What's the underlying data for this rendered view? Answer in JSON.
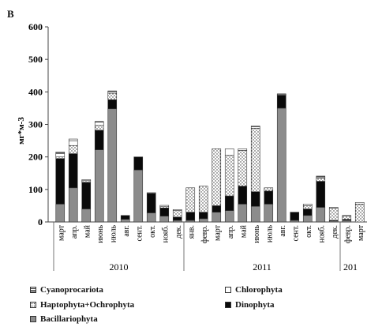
{
  "chart_data": {
    "type": "bar",
    "stacked": true,
    "panel_label": "В",
    "title": "",
    "xlabel": "",
    "ylabel": "мг*м-3",
    "ylim": [
      0,
      600
    ],
    "yticks": [
      0,
      100,
      200,
      300,
      400,
      500,
      600
    ],
    "grid": false,
    "legend_position": "bottom",
    "categories": [
      "март",
      "апр.",
      "май",
      "июнь",
      "июль",
      "авг.",
      "сент.",
      "окт.",
      "нояб.",
      "дек.",
      "янв.",
      "февр.",
      "март",
      "апр.",
      "май",
      "июнь",
      "июль",
      "авг.",
      "сент.",
      "окт.",
      "нояб.",
      "дек.",
      "февр.",
      "март"
    ],
    "year_groups": [
      {
        "label": "2010",
        "start": 0,
        "end": 9
      },
      {
        "label": "2011",
        "start": 10,
        "end": 21
      },
      {
        "label": "201",
        "start": 22,
        "end": 23
      }
    ],
    "series": [
      {
        "name": "Bacillariophyta",
        "color": "#8c8c8c",
        "pattern": "none",
        "values": [
          55,
          105,
          40,
          222,
          348,
          8,
          160,
          28,
          18,
          5,
          5,
          10,
          30,
          35,
          55,
          48,
          55,
          350,
          5,
          20,
          45,
          3,
          5,
          0
        ]
      },
      {
        "name": "Dinophyta",
        "color": "#0a0a0a",
        "pattern": "none",
        "values": [
          140,
          105,
          82,
          60,
          28,
          12,
          40,
          60,
          25,
          10,
          25,
          20,
          20,
          45,
          55,
          45,
          40,
          40,
          25,
          20,
          80,
          2,
          3,
          0
        ]
      },
      {
        "name": "Haptophyta+Ochrophyta",
        "color": "#ffffff",
        "pattern": "dots",
        "values": [
          5,
          25,
          5,
          15,
          20,
          0,
          0,
          2,
          5,
          20,
          75,
          80,
          175,
          125,
          110,
          195,
          10,
          0,
          0,
          10,
          10,
          38,
          10,
          55
        ]
      },
      {
        "name": "Chlorophyta",
        "color": "#ffffff",
        "pattern": "none",
        "values": [
          10,
          15,
          3,
          10,
          5,
          0,
          0,
          0,
          3,
          3,
          0,
          0,
          0,
          20,
          5,
          5,
          0,
          2,
          0,
          5,
          3,
          2,
          2,
          5
        ]
      },
      {
        "name": "Cyanoprocariota",
        "color": "#ffffff",
        "pattern": "lines",
        "values": [
          5,
          5,
          0,
          2,
          2,
          0,
          0,
          0,
          0,
          0,
          0,
          0,
          0,
          0,
          0,
          2,
          0,
          2,
          0,
          0,
          3,
          0,
          0,
          0
        ]
      }
    ],
    "legend": [
      {
        "label": "Cyanoprocariota",
        "series": "Cyanoprocariota"
      },
      {
        "label": "Chlorophyta",
        "series": "Chlorophyta"
      },
      {
        "label": "Haptophyta+Ochrophyta",
        "series": "Haptophyta+Ochrophyta"
      },
      {
        "label": "Dinophyta",
        "series": "Dinophyta"
      },
      {
        "label": "Bacillariophyta",
        "series": "Bacillariophyta"
      }
    ]
  }
}
